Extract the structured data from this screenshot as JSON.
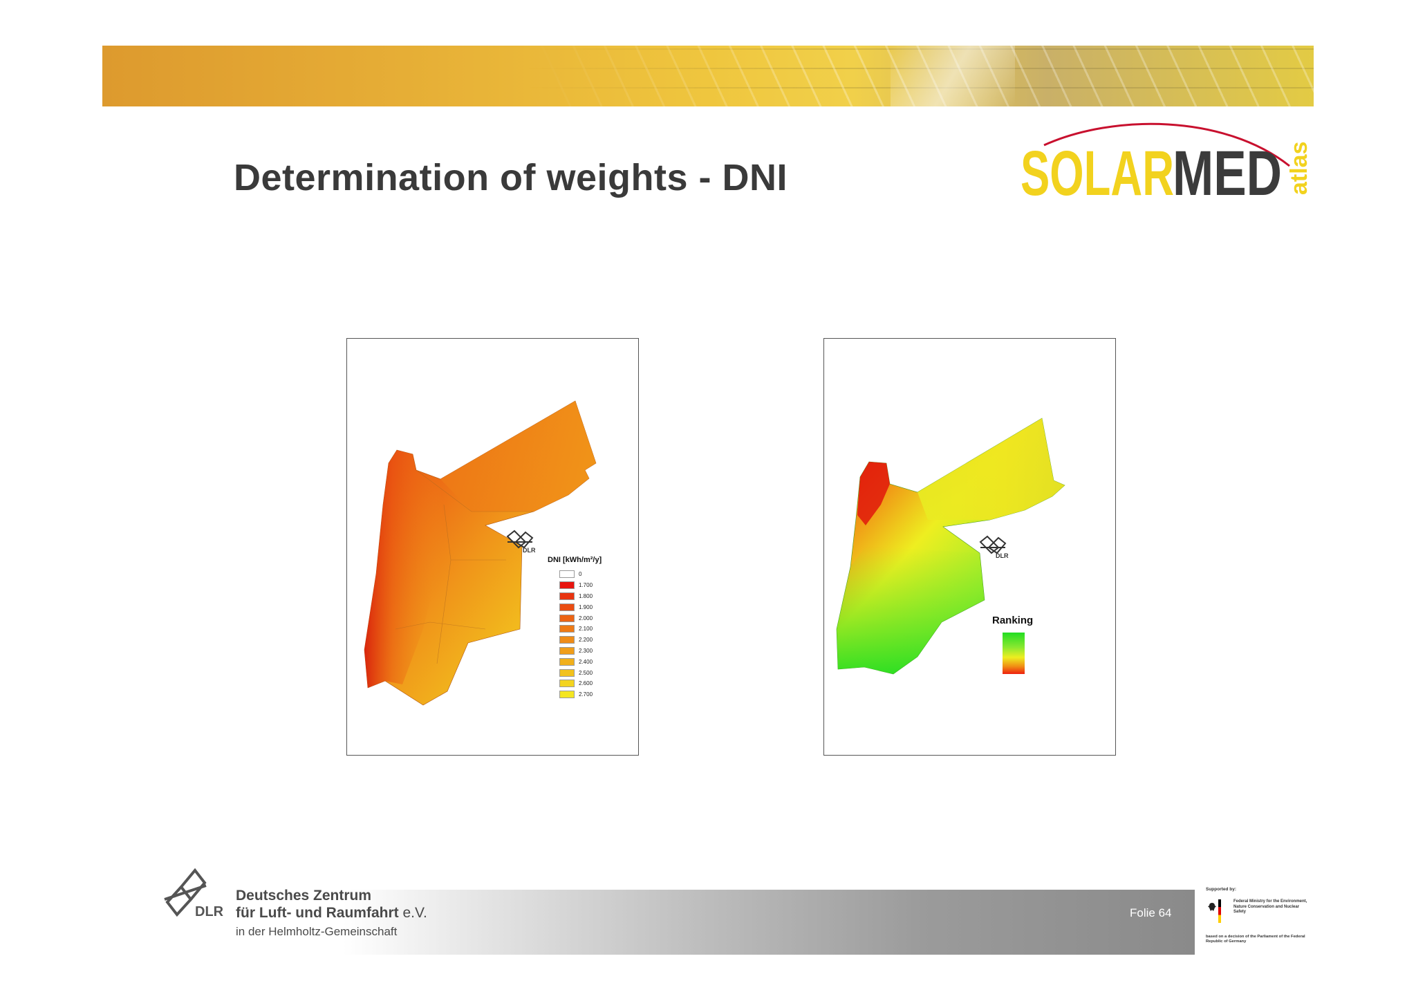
{
  "slide": {
    "title": "Determination of weights - DNI",
    "folie": "Folie 64"
  },
  "logo": {
    "solar": "SOLAR",
    "med": "MED",
    "atlas": "atlas",
    "colors": {
      "solar": "#f2d21e",
      "med": "#3b3b3b",
      "atlas": "#f2d21e",
      "arc": "#c8102e"
    }
  },
  "map_dni": {
    "watermark": "DLR",
    "legend_title": "DNI [kWh/m²/y]",
    "legend": [
      {
        "label": "0",
        "color": "#ffffff"
      },
      {
        "label": "1.700",
        "color": "#e8150f"
      },
      {
        "label": "1.800",
        "color": "#e83410"
      },
      {
        "label": "1.900",
        "color": "#ea4d12"
      },
      {
        "label": "2.000",
        "color": "#ec6414"
      },
      {
        "label": "2.100",
        "color": "#ee7a16"
      },
      {
        "label": "2.200",
        "color": "#ef8c18"
      },
      {
        "label": "2.300",
        "color": "#f09e1a"
      },
      {
        "label": "2.400",
        "color": "#f1b01c"
      },
      {
        "label": "2.500",
        "color": "#f2c21e"
      },
      {
        "label": "2.600",
        "color": "#f3d420"
      },
      {
        "label": "2.700",
        "color": "#f4e622"
      }
    ]
  },
  "map_ranking": {
    "watermark": "DLR",
    "legend_title": "Ranking"
  },
  "footer": {
    "dlr": "DLR",
    "org_line1": "Deutsches Zentrum",
    "org_line2": "für Luft- und Raumfahrt",
    "org_line2_suffix": "e.V.",
    "org_line3": "in der Helmholtz-Gemeinschaft"
  },
  "sponsor": {
    "supported_by": "Supported by:",
    "ministry": "Federal Ministry for the Environment, Nature Conservation and Nuclear Safety",
    "decision": "based on a decision of the Parliament of the Federal Republic of Germany"
  }
}
